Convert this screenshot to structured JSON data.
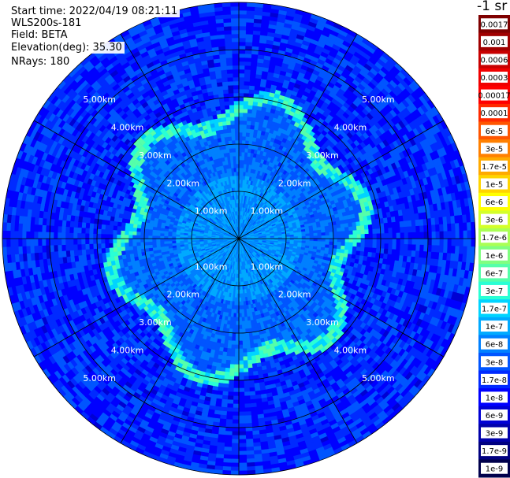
{
  "header": {
    "start_time": "Start time: 2022/04/19 08:21:11",
    "instrument": "WLS200s-181",
    "field": "Field: BETA",
    "elevation": "Elevation(deg): 35.30",
    "nrays": "NRays: 180"
  },
  "chart_data": {
    "type": "heatmap",
    "projection": "polar PPI",
    "max_range_km": 5,
    "range_labels": [
      "1.00km",
      "2.00km",
      "3.00km",
      "4.00km",
      "5.00km"
    ],
    "azimuth_spokes_deg": [
      0,
      30,
      60,
      90,
      120,
      150,
      180,
      210,
      240,
      270,
      300,
      330
    ],
    "colorbar": {
      "unit": "-1 sr",
      "ticks": [
        "0.0017",
        "0.001",
        "0.0006",
        "0.0003",
        "0.00017",
        "0.0001",
        "6e-5",
        "3e-5",
        "1.7e-5",
        "1e-5",
        "6e-6",
        "3e-6",
        "1.7e-6",
        "1e-6",
        "6e-7",
        "3e-7",
        "1.7e-7",
        "1e-7",
        "6e-8",
        "3e-8",
        "1.7e-8",
        "1e-8",
        "6e-9",
        "3e-9",
        "1.7e-9",
        "1e-9"
      ],
      "colors": [
        "#7f0000",
        "#a00000",
        "#c80000",
        "#f00000",
        "#ff0000",
        "#ff2a00",
        "#ff5500",
        "#ff8000",
        "#ffaa00",
        "#ffd400",
        "#ffff00",
        "#d4ff2a",
        "#aaff55",
        "#80ff80",
        "#55ffaa",
        "#2affd4",
        "#00d4ff",
        "#00aaff",
        "#0080ff",
        "#0055ff",
        "#002aff",
        "#0000ff",
        "#0000d4",
        "#0000aa",
        "#000080",
        "#00004c"
      ]
    },
    "features": {
      "ring_range_km": 2.6,
      "ring_value": "6e-7",
      "inner_value": "6e-8",
      "outer_value": "1.7e-8"
    }
  }
}
